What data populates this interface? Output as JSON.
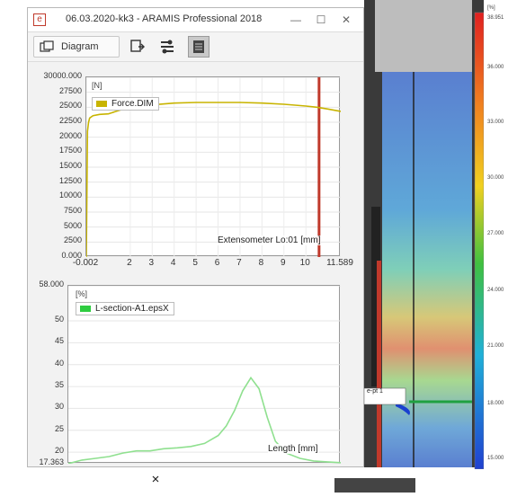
{
  "window": {
    "title": "06.03.2020-kk3 - ARAMIS Professional 2018",
    "minimize_glyph": "—",
    "maximize_glyph": "☐",
    "close_glyph": "✕",
    "app_icon_glyph": "e"
  },
  "toolbar": {
    "diagram_label": "Diagram",
    "icons": [
      "diagram-icon",
      "export-icon",
      "filter-icon",
      "table-view-icon"
    ]
  },
  "force_chart": {
    "unit": "[N]",
    "legend": "Force.DIM",
    "xlabel": "Extensometer Lo:01 [mm]",
    "color": "#c8b400",
    "marker_color": "#c0392b"
  },
  "strain_chart": {
    "unit": "[%]",
    "legend": "L-section-A1.epsX",
    "xlabel": "Length [mm]",
    "color": "#8fe08f"
  },
  "chart_data": [
    {
      "type": "line",
      "ylabel": "[N]",
      "xlabel": "Extensometer Lo:01 [mm]",
      "xlim": [
        -0.002,
        11.589
      ],
      "ylim": [
        0,
        30000
      ],
      "y_ticks": [
        "30000.000",
        "27500",
        "25000",
        "22500",
        "20000",
        "17500",
        "15000",
        "12500",
        "10000",
        "7500",
        "5000",
        "2500",
        "0.000"
      ],
      "y_tick_values": [
        30000,
        27500,
        25000,
        22500,
        20000,
        17500,
        15000,
        12500,
        10000,
        7500,
        5000,
        2500,
        0
      ],
      "x_ticks": [
        "-0.002",
        "2",
        "3",
        "4",
        "5",
        "6",
        "7",
        "8",
        "9",
        "10",
        "11.589"
      ],
      "x_tick_values": [
        -0.002,
        2,
        3,
        4,
        5,
        6,
        7,
        8,
        9,
        10,
        11.589
      ],
      "series": [
        {
          "name": "Force.DIM",
          "x": [
            -0.002,
            0.05,
            0.1,
            0.15,
            0.3,
            0.6,
            1.0,
            1.5,
            2.0,
            3.0,
            4.0,
            5.0,
            6.0,
            7.0,
            8.0,
            9.0,
            10.0,
            10.5,
            11.0,
            11.589
          ],
          "y": [
            0,
            21000,
            22500,
            23200,
            23600,
            23800,
            23900,
            24500,
            25000,
            25400,
            25700,
            25800,
            25800,
            25800,
            25700,
            25500,
            25200,
            25000,
            24700,
            24300
          ]
        }
      ],
      "marker_x": 10.6
    },
    {
      "type": "line",
      "ylabel": "[%]",
      "xlabel": "Length [mm]",
      "xlim": [
        0,
        100
      ],
      "ylim": [
        17.363,
        58.0
      ],
      "y_ticks": [
        "58.000",
        "50",
        "45",
        "40",
        "35",
        "30",
        "25",
        "20",
        "17.363"
      ],
      "y_tick_values": [
        58,
        50,
        45,
        40,
        35,
        30,
        25,
        20,
        17.363
      ],
      "series": [
        {
          "name": "L-section-A1.epsX",
          "x": [
            0,
            5,
            10,
            15,
            20,
            25,
            30,
            35,
            40,
            45,
            50,
            55,
            58,
            61,
            64,
            67,
            70,
            73,
            76,
            80,
            85,
            90,
            95,
            100
          ],
          "y": [
            17.4,
            18.2,
            18.6,
            19.0,
            19.8,
            20.3,
            20.3,
            20.8,
            21.0,
            21.3,
            22.0,
            23.8,
            26.0,
            29.5,
            34.0,
            37.0,
            34.5,
            28.0,
            22.5,
            19.8,
            18.6,
            18.0,
            17.8,
            17.6
          ]
        }
      ]
    }
  ],
  "specimen": {
    "scale_top_label": "[%]",
    "scale_labels": [
      "38.951",
      "36.000",
      "33.000",
      "30.000",
      "27.000",
      "24.000",
      "21.000",
      "18.000",
      "15.000"
    ],
    "tag_label": "e-pt 1"
  }
}
